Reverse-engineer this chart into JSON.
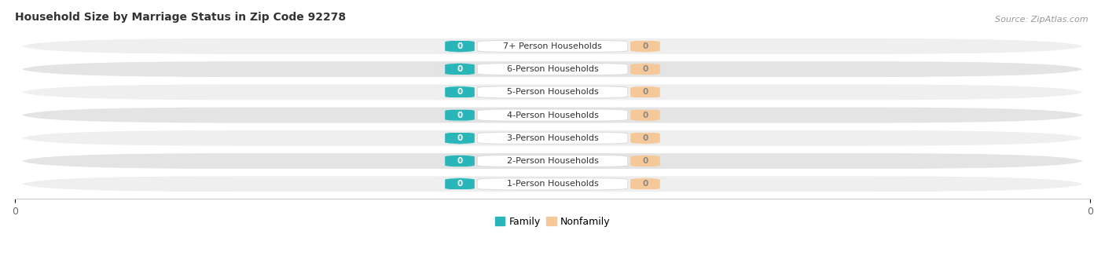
{
  "title": "Household Size by Marriage Status in Zip Code 92278",
  "source": "Source: ZipAtlas.com",
  "categories": [
    "7+ Person Households",
    "6-Person Households",
    "5-Person Households",
    "4-Person Households",
    "3-Person Households",
    "2-Person Households",
    "1-Person Households"
  ],
  "family_values": [
    0,
    0,
    0,
    0,
    0,
    0,
    0
  ],
  "nonfamily_values": [
    0,
    0,
    0,
    0,
    0,
    0,
    0
  ],
  "family_color": "#2ab5b8",
  "nonfamily_color": "#f5c89a",
  "row_colors": [
    "#efefef",
    "#e4e4e4"
  ],
  "row_edge_color": "#ffffff",
  "label_box_color": "#ffffff",
  "label_box_edge": "#dddddd",
  "title_fontsize": 10,
  "source_fontsize": 8,
  "tick_fontsize": 9,
  "bar_label_fontsize": 7.5,
  "cat_label_fontsize": 8,
  "legend_fontsize": 9,
  "fig_width": 14.06,
  "fig_height": 3.4,
  "dpi": 100
}
